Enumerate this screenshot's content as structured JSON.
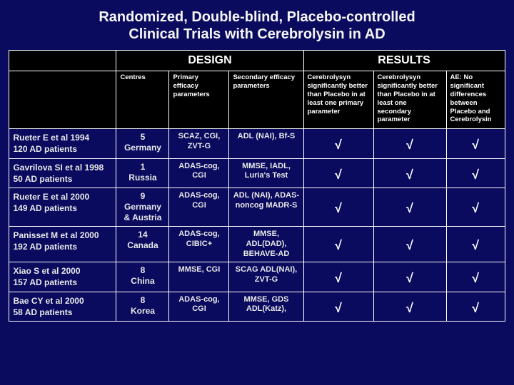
{
  "title_line1": "Randomized, Double-blind, Placebo-controlled",
  "title_line2": "Clinical Trials with Cerebrolysin in AD",
  "group_headers": {
    "design": "DESIGN",
    "results": "RESULTS"
  },
  "col_headers": {
    "centres": "Centres",
    "primary": "Primary efficacy parameters",
    "secondary": "Secondary efficacy parameters",
    "r1": "Cerebrolysyn significantly better than Placebo in at least one primary parameter",
    "r2": "Cerebrolysyn significantly better than Placebo in at least one secondary parameter",
    "r3": "AE: No significant differences between Placebo and Cerebrolysin"
  },
  "tick": "√",
  "rows": [
    {
      "study_l1": "Rueter E et al 1994",
      "study_l2": "120 AD patients",
      "centres_n": "5",
      "centres_c": "Germany",
      "primary": "SCAZ, CGI, ZVT-G",
      "secondary": "ADL (NAI), Bf-S",
      "r1": "√",
      "r2": "√",
      "r3": "√"
    },
    {
      "study_l1": "Gavrilova SI et al 1998",
      "study_l2": "50 AD patients",
      "centres_n": "1",
      "centres_c": "Russia",
      "primary": "ADAS-cog, CGI",
      "secondary": "MMSE, IADL, Luria's Test",
      "r1": "√",
      "r2": "√",
      "r3": "√"
    },
    {
      "study_l1": "Rueter E et al 2000",
      "study_l2": "149 AD patients",
      "centres_n": "9",
      "centres_c": "Germany & Austria",
      "primary": "ADAS-cog, CGI",
      "secondary": "ADL (NAI), ADAS-noncog MADR-S",
      "r1": "√",
      "r2": "√",
      "r3": "√"
    },
    {
      "study_l1": "Panisset M et al 2000",
      "study_l2": "192 AD patients",
      "centres_n": "14",
      "centres_c": "Canada",
      "primary": "ADAS-cog, CIBIC+",
      "secondary": "MMSE, ADL(DAD), BEHAVE-AD",
      "r1": "√",
      "r2": "√",
      "r3": "√"
    },
    {
      "study_l1": "Xiao S et al 2000",
      "study_l2": "157 AD patients",
      "centres_n": "8",
      "centres_c": "China",
      "primary": "MMSE, CGI",
      "secondary": "SCAG ADL(NAI), ZVT-G",
      "r1": "√",
      "r2": "√",
      "r3": "√"
    },
    {
      "study_l1": "Bae CY et al 2000",
      "study_l2": "58 AD patients",
      "centres_n": "8",
      "centres_c": "Korea",
      "primary": "ADAS-cog, CGI",
      "secondary": "MMSE, GDS ADL(Katz),",
      "r1": "√",
      "r2": "√",
      "r3": "√"
    }
  ],
  "colors": {
    "page_bg": "#0a0a5e",
    "header_bg": "#000000",
    "border": "#ffffff",
    "text": "#ffffff"
  }
}
